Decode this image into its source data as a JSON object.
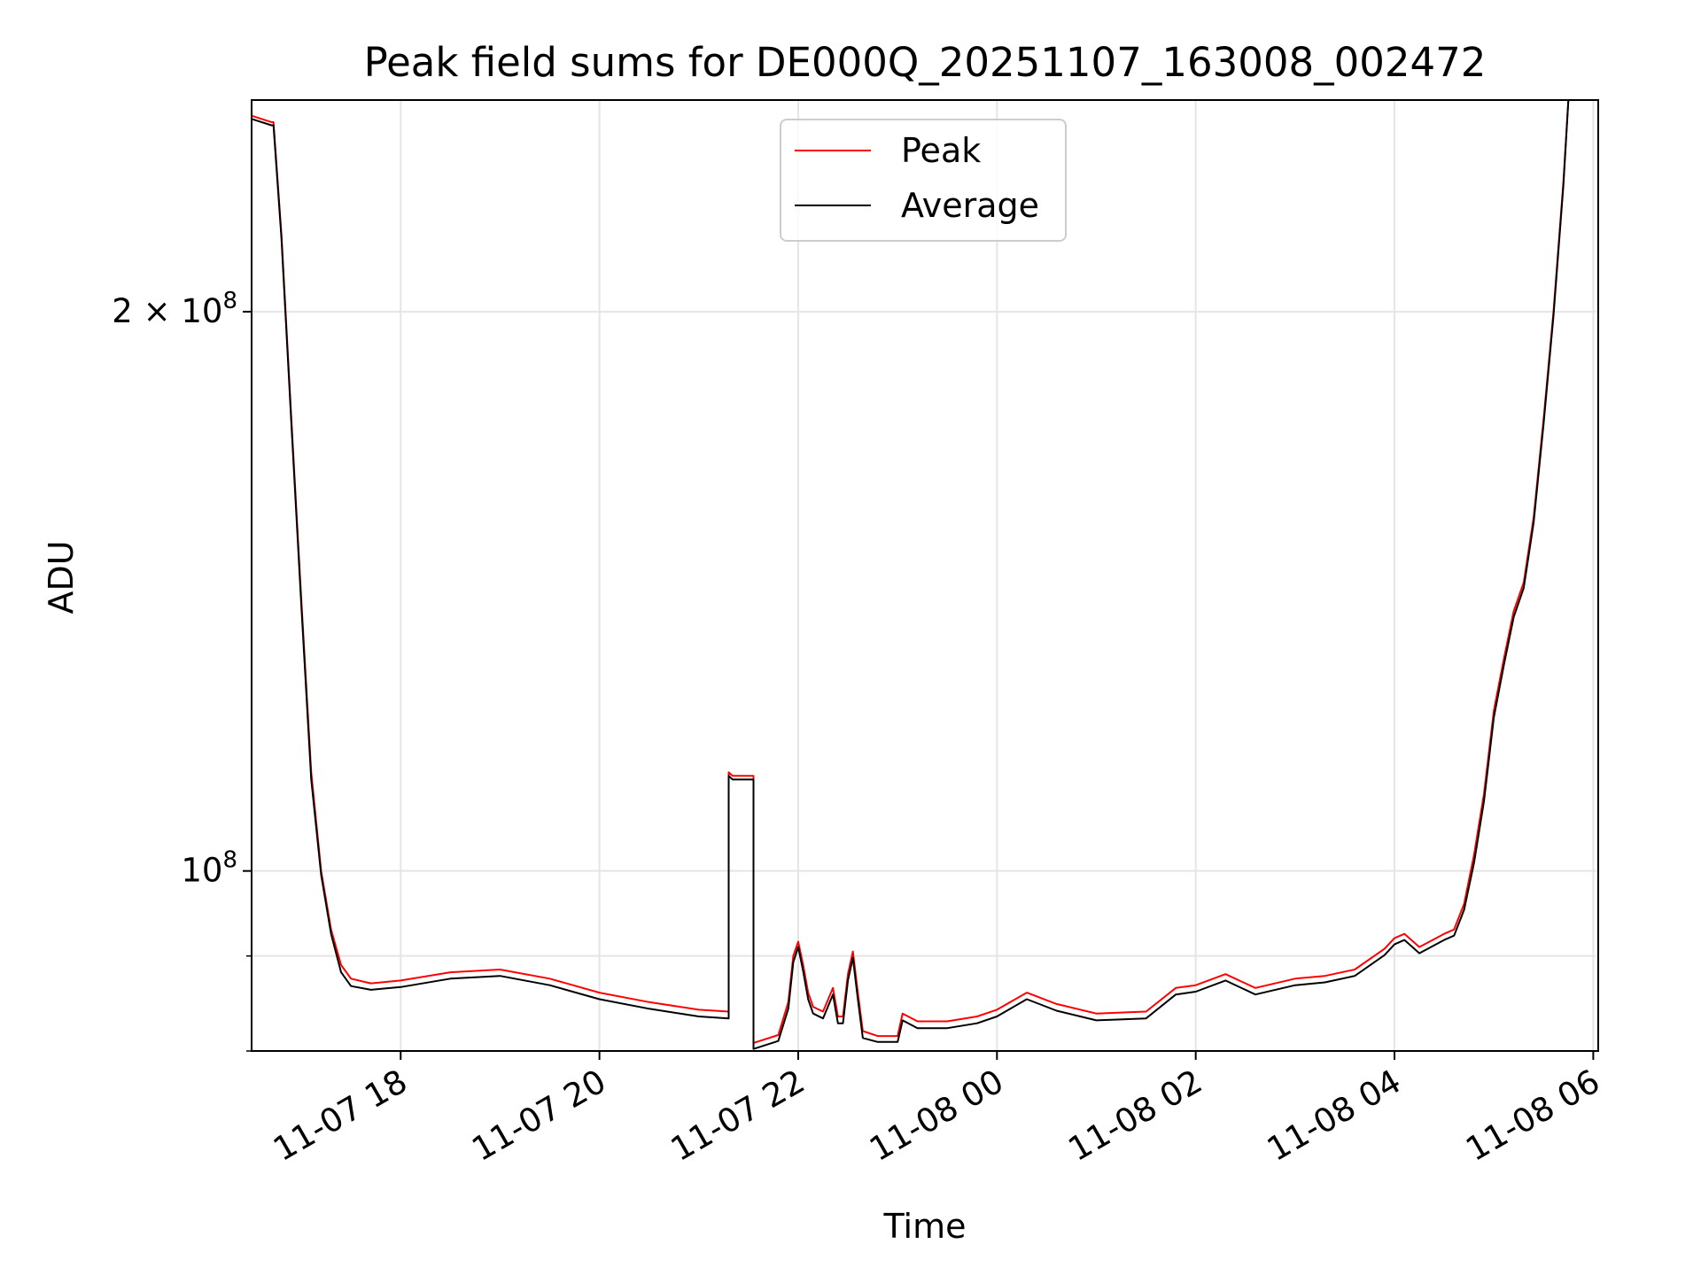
{
  "chart_data": {
    "type": "line",
    "title": "Peak field sums for DE000Q_20251107_163008_002472",
    "xlabel": "Time",
    "ylabel": "ADU",
    "yscale": "log",
    "xlim_hours": [
      16.5,
      30.05
    ],
    "ylim": [
      80000000,
      260000000
    ],
    "x_ticks": [
      {
        "hours": 18,
        "label": "11-07 18"
      },
      {
        "hours": 20,
        "label": "11-07 20"
      },
      {
        "hours": 22,
        "label": "11-07 22"
      },
      {
        "hours": 24,
        "label": "11-08 00"
      },
      {
        "hours": 26,
        "label": "11-08 02"
      },
      {
        "hours": 28,
        "label": "11-08 04"
      },
      {
        "hours": 30,
        "label": "11-08 06"
      }
    ],
    "y_major_ticks": [
      {
        "value": 100000000,
        "base": "10",
        "exp": "8",
        "mult": ""
      },
      {
        "value": 200000000,
        "base": "10",
        "exp": "8",
        "mult": "2 × "
      }
    ],
    "y_minor_ticks": [
      80000000,
      90000000
    ],
    "grid": true,
    "legend_position": "top-center",
    "series": [
      {
        "name": "Peak",
        "color": "#ff0000",
        "points": [
          [
            16.5,
            255000000.0
          ],
          [
            16.7,
            253000000.0
          ],
          [
            16.72,
            253000000.0
          ],
          [
            16.8,
            220000000.0
          ],
          [
            16.9,
            175000000.0
          ],
          [
            17.0,
            140000000.0
          ],
          [
            17.1,
            113000000.0
          ],
          [
            17.2,
            100000000.0
          ],
          [
            17.3,
            93000000.0
          ],
          [
            17.4,
            89000000.0
          ],
          [
            17.5,
            87500000.0
          ],
          [
            17.7,
            87000000.0
          ],
          [
            18.0,
            87300000.0
          ],
          [
            18.5,
            88200000.0
          ],
          [
            19.0,
            88500000.0
          ],
          [
            19.5,
            87500000.0
          ],
          [
            20.0,
            86000000.0
          ],
          [
            20.5,
            85000000.0
          ],
          [
            21.0,
            84200000.0
          ],
          [
            21.3,
            84000000.0
          ],
          [
            21.3,
            113000000.0
          ],
          [
            21.34,
            112500000.0
          ],
          [
            21.5,
            112500000.0
          ],
          [
            21.55,
            112500000.0
          ],
          [
            21.55,
            80800000.0
          ],
          [
            21.8,
            81600000.0
          ],
          [
            21.9,
            85000000.0
          ],
          [
            21.95,
            90000000.0
          ],
          [
            22.0,
            91600000.0
          ],
          [
            22.05,
            89000000.0
          ],
          [
            22.1,
            86000000.0
          ],
          [
            22.15,
            84500000.0
          ],
          [
            22.25,
            84000000.0
          ],
          [
            22.35,
            86500000.0
          ],
          [
            22.4,
            83500000.0
          ],
          [
            22.45,
            83500000.0
          ],
          [
            22.5,
            88000000.0
          ],
          [
            22.55,
            90500000.0
          ],
          [
            22.6,
            86000000.0
          ],
          [
            22.65,
            82000000.0
          ],
          [
            22.8,
            81500000.0
          ],
          [
            23.0,
            81500000.0
          ],
          [
            23.05,
            83800000.0
          ],
          [
            23.2,
            83000000.0
          ],
          [
            23.5,
            83000000.0
          ],
          [
            23.8,
            83500000.0
          ],
          [
            24.0,
            84200000.0
          ],
          [
            24.3,
            86000000.0
          ],
          [
            24.6,
            84800000.0
          ],
          [
            25.0,
            83800000.0
          ],
          [
            25.5,
            84000000.0
          ],
          [
            25.8,
            86500000.0
          ],
          [
            26.0,
            86800000.0
          ],
          [
            26.3,
            88000000.0
          ],
          [
            26.6,
            86500000.0
          ],
          [
            27.0,
            87500000.0
          ],
          [
            27.3,
            87800000.0
          ],
          [
            27.6,
            88500000.0
          ],
          [
            27.9,
            90800000.0
          ],
          [
            28.0,
            92000000.0
          ],
          [
            28.1,
            92500000.0
          ],
          [
            28.25,
            91000000.0
          ],
          [
            28.5,
            92500000.0
          ],
          [
            28.6,
            93000000.0
          ],
          [
            28.7,
            96000000.0
          ],
          [
            28.8,
            102000000.0
          ],
          [
            28.9,
            110000000.0
          ],
          [
            29.0,
            122000000.0
          ],
          [
            29.1,
            130000000.0
          ],
          [
            29.2,
            138000000.0
          ],
          [
            29.3,
            143000000.0
          ],
          [
            29.4,
            155000000.0
          ],
          [
            29.5,
            175000000.0
          ],
          [
            29.6,
            200000000.0
          ],
          [
            29.7,
            235000000.0
          ],
          [
            29.75,
            260000000.0
          ]
        ]
      },
      {
        "name": "Average",
        "color": "#000000",
        "points": [
          [
            16.5,
            254000000.0
          ],
          [
            16.7,
            252000000.0
          ],
          [
            16.72,
            252000000.0
          ],
          [
            16.8,
            219000000.0
          ],
          [
            16.9,
            174000000.0
          ],
          [
            17.0,
            139000000.0
          ],
          [
            17.1,
            112000000.0
          ],
          [
            17.2,
            99500000.0
          ],
          [
            17.3,
            92500000.0
          ],
          [
            17.4,
            88200000.0
          ],
          [
            17.5,
            86700000.0
          ],
          [
            17.7,
            86300000.0
          ],
          [
            18.0,
            86600000.0
          ],
          [
            18.5,
            87500000.0
          ],
          [
            19.0,
            87800000.0
          ],
          [
            19.5,
            86800000.0
          ],
          [
            20.0,
            85300000.0
          ],
          [
            20.5,
            84300000.0
          ],
          [
            21.0,
            83500000.0
          ],
          [
            21.3,
            83300000.0
          ],
          [
            21.3,
            112500000.0
          ],
          [
            21.34,
            112000000.0
          ],
          [
            21.5,
            112000000.0
          ],
          [
            21.55,
            112000000.0
          ],
          [
            21.55,
            80200000.0
          ],
          [
            21.8,
            81000000.0
          ],
          [
            21.9,
            84300000.0
          ],
          [
            21.95,
            89300000.0
          ],
          [
            22.0,
            91000000.0
          ],
          [
            22.05,
            88300000.0
          ],
          [
            22.1,
            85300000.0
          ],
          [
            22.15,
            83800000.0
          ],
          [
            22.25,
            83300000.0
          ],
          [
            22.35,
            85800000.0
          ],
          [
            22.4,
            82800000.0
          ],
          [
            22.45,
            82800000.0
          ],
          [
            22.5,
            87300000.0
          ],
          [
            22.55,
            89800000.0
          ],
          [
            22.6,
            85300000.0
          ],
          [
            22.65,
            81300000.0
          ],
          [
            22.8,
            80900000.0
          ],
          [
            23.0,
            80900000.0
          ],
          [
            23.05,
            83100000.0
          ],
          [
            23.2,
            82300000.0
          ],
          [
            23.5,
            82300000.0
          ],
          [
            23.8,
            82800000.0
          ],
          [
            24.0,
            83500000.0
          ],
          [
            24.3,
            85300000.0
          ],
          [
            24.6,
            84100000.0
          ],
          [
            25.0,
            83100000.0
          ],
          [
            25.5,
            83300000.0
          ],
          [
            25.8,
            85800000.0
          ],
          [
            26.0,
            86100000.0
          ],
          [
            26.3,
            87300000.0
          ],
          [
            26.6,
            85800000.0
          ],
          [
            27.0,
            86800000.0
          ],
          [
            27.3,
            87100000.0
          ],
          [
            27.6,
            87800000.0
          ],
          [
            27.9,
            90100000.0
          ],
          [
            28.0,
            91300000.0
          ],
          [
            28.1,
            91800000.0
          ],
          [
            28.25,
            90300000.0
          ],
          [
            28.5,
            91800000.0
          ],
          [
            28.6,
            92300000.0
          ],
          [
            28.7,
            95300000.0
          ],
          [
            28.8,
            101000000.0
          ],
          [
            28.9,
            109000000.0
          ],
          [
            29.0,
            121000000.0
          ],
          [
            29.1,
            129000000.0
          ],
          [
            29.2,
            137000000.0
          ],
          [
            29.3,
            142000000.0
          ],
          [
            29.4,
            154000000.0
          ],
          [
            29.5,
            174000000.0
          ],
          [
            29.6,
            199000000.0
          ],
          [
            29.7,
            234000000.0
          ],
          [
            29.75,
            260000000.0
          ]
        ]
      }
    ]
  }
}
